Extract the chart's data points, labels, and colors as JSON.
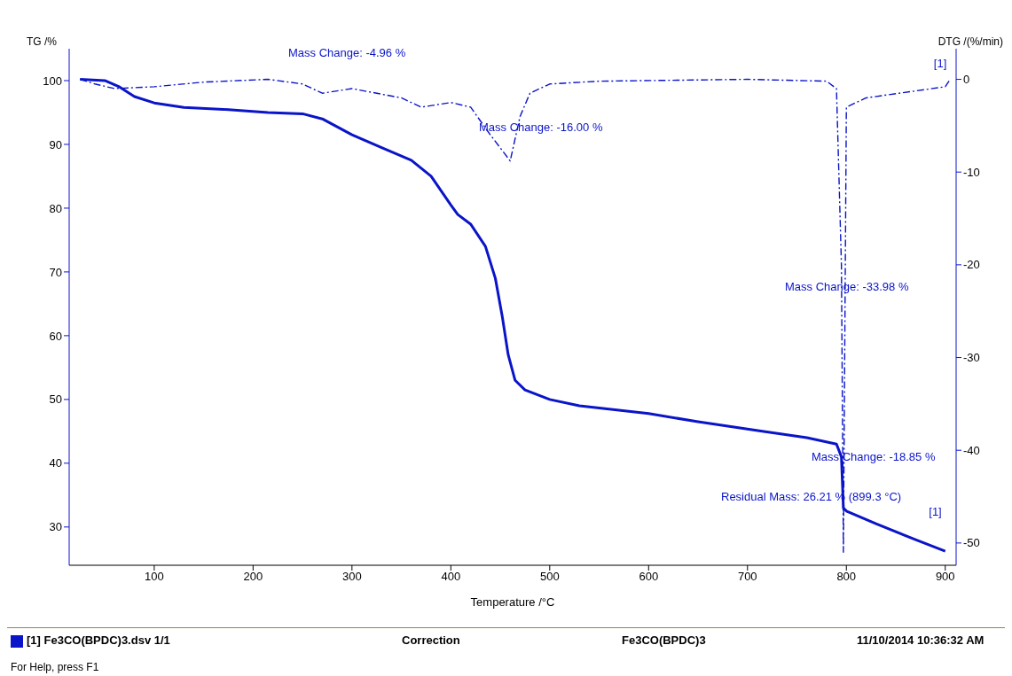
{
  "chart_data": {
    "type": "line",
    "xlabel": "Temperature /°C",
    "ylabel": "TG /%",
    "y2label": "DTG /(%/min)",
    "xlim": [
      14,
      911
    ],
    "xticks": [
      100,
      200,
      300,
      400,
      500,
      600,
      700,
      800,
      900
    ],
    "ylim": [
      24,
      105
    ],
    "yticks": [
      30,
      40,
      50,
      60,
      70,
      80,
      90,
      100
    ],
    "y2lim": [
      -52.4,
      3.3
    ],
    "y2ticks": [
      0,
      -10,
      -20,
      -30,
      -40,
      -50
    ],
    "grid": false,
    "legend": false,
    "marker": "none",
    "series": [
      {
        "name": "[1]",
        "color": "#0a14c8",
        "line_style": "solid",
        "x": [
          25,
          50,
          65,
          80,
          100,
          130,
          170,
          215,
          250,
          270,
          300,
          330,
          360,
          380,
          400,
          407,
          420,
          435,
          445,
          452,
          458,
          465,
          475,
          500,
          530,
          600,
          650,
          715,
          760,
          790,
          795,
          797,
          800,
          830,
          870,
          900
        ],
        "values": [
          100.2,
          100,
          99,
          97.5,
          96.5,
          95.8,
          95.5,
          95,
          94.8,
          94,
          91.5,
          89.5,
          87.5,
          85,
          80.5,
          79,
          77.5,
          74,
          69,
          63,
          57,
          53,
          51.5,
          50,
          49,
          47.8,
          46.5,
          45,
          44,
          43,
          41,
          33,
          32.5,
          30.5,
          28,
          26.2
        ]
      },
      {
        "name": "[1]",
        "color": "#0a14c8",
        "line_style": "dashed",
        "axis": "y2",
        "x": [
          25,
          40,
          60,
          100,
          150,
          215,
          250,
          270,
          300,
          350,
          370,
          400,
          420,
          440,
          460,
          470,
          480,
          500,
          550,
          700,
          780,
          790,
          795,
          797,
          800,
          820,
          900,
          905
        ],
        "values": [
          0,
          -0.5,
          -1,
          -0.8,
          -0.3,
          0,
          -0.5,
          -1.5,
          -1,
          -2,
          -3,
          -2.5,
          -3,
          -6,
          -8.8,
          -4,
          -1.5,
          -0.5,
          -0.2,
          0,
          -0.2,
          -1,
          -20,
          -51,
          -3,
          -2,
          -0.8,
          0
        ]
      }
    ],
    "annotations": [
      "Mass Change: -4.96 %",
      "Mass Change: -16.00 %",
      "Mass Change: -33.98 %",
      "Mass Change: -18.85 %",
      "Residual Mass: 26.21 % (899.3 °C)",
      "[1] Fe3CO(BPDC)3.dsv 1/1",
      "Correction",
      "Fe3CO(BPDC)3",
      "11/10/2014 10:36:32 AM",
      "For Help, press F1"
    ]
  }
}
